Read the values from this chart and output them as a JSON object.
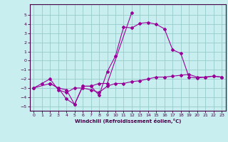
{
  "title": "",
  "xlabel": "Windchill (Refroidissement éolien,°C)",
  "background_color": "#c8eef0",
  "grid_color": "#99cccc",
  "line_color": "#990099",
  "xlim": [
    -0.5,
    23.5
  ],
  "ylim": [
    -5.5,
    6.2
  ],
  "xticks": [
    0,
    1,
    2,
    3,
    4,
    5,
    6,
    7,
    8,
    9,
    10,
    11,
    12,
    13,
    14,
    15,
    16,
    17,
    18,
    19,
    20,
    21,
    22,
    23
  ],
  "yticks": [
    -5,
    -4,
    -3,
    -2,
    -1,
    0,
    1,
    2,
    3,
    4,
    5
  ],
  "series": [
    [
      null,
      null,
      -2.5,
      -3.0,
      -4.2,
      -4.8,
      -2.8,
      -2.8,
      -3.8,
      -1.2,
      0.5,
      3.7,
      3.6,
      4.1,
      4.2,
      4.0,
      3.5,
      1.2,
      0.8,
      -1.8,
      -1.9,
      -1.8,
      -1.7,
      -1.8
    ],
    [
      null,
      null,
      -2.5,
      -3.0,
      -3.2,
      -4.8,
      -2.8,
      -2.8,
      -2.5,
      -2.5,
      null,
      null,
      5.3,
      null,
      null,
      null,
      null,
      null,
      null,
      null,
      null,
      null,
      null,
      null
    ],
    [
      -3.0,
      null,
      -2.5,
      null,
      null,
      null,
      null,
      null,
      null,
      null,
      null,
      null,
      null,
      null,
      null,
      null,
      null,
      null,
      null,
      null,
      null,
      null,
      null,
      null
    ],
    [
      -3.0,
      -2.5,
      -2.0,
      -3.2,
      -3.5,
      -3.0,
      -3.0,
      -3.2,
      -3.5,
      -2.8,
      -2.5,
      -2.5,
      -2.3,
      -2.2,
      -2.0,
      -1.8,
      -1.8,
      -1.7,
      -1.6,
      -1.5,
      -1.8,
      -1.8,
      -1.7,
      -1.8
    ]
  ]
}
